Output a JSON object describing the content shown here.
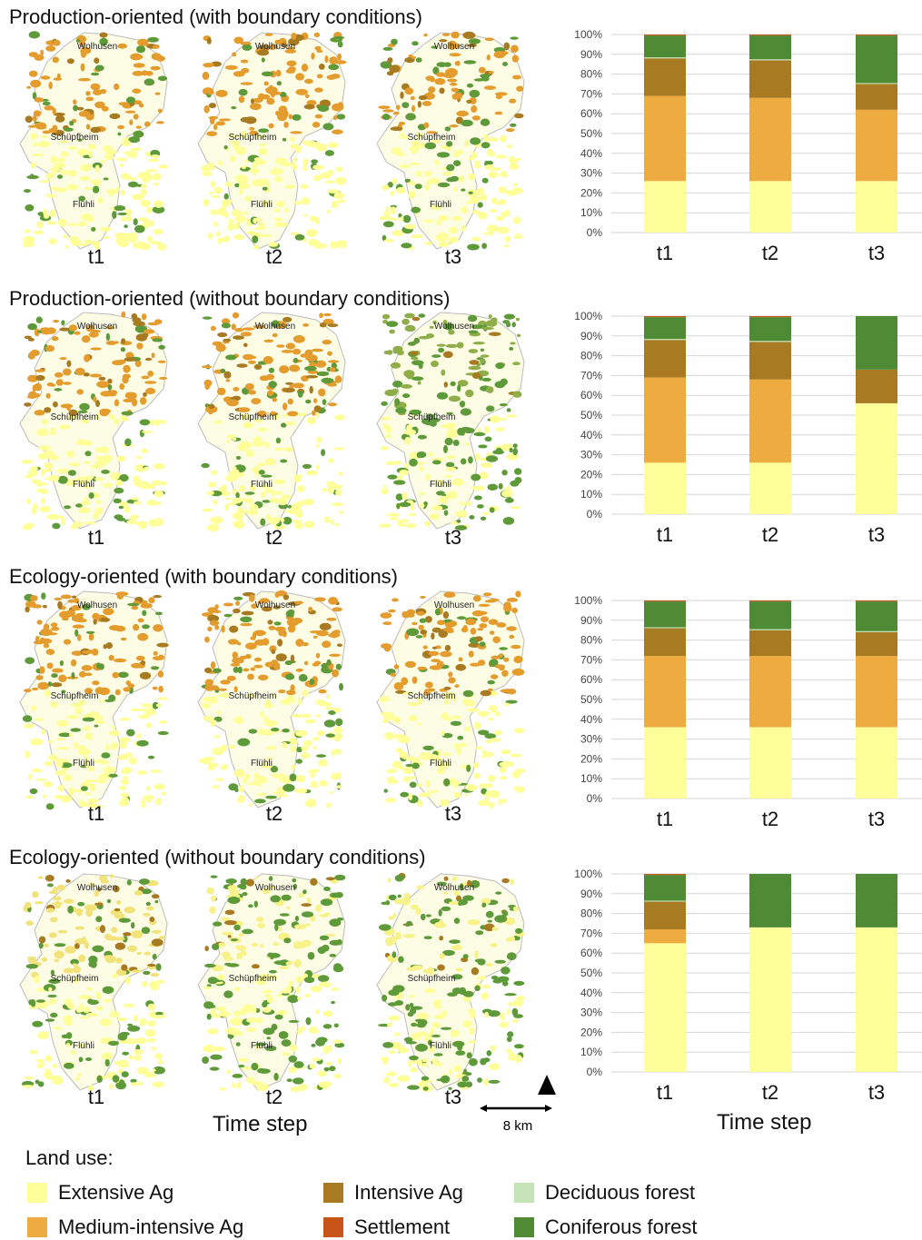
{
  "panels": [
    {
      "title": "Production-oriented (with boundary conditions)"
    },
    {
      "title": "Production-oriented (without boundary conditions)"
    },
    {
      "title": "Ecology-oriented (with boundary conditions)"
    },
    {
      "title": "Ecology-oriented (without boundary conditions)"
    }
  ],
  "map_labels": {
    "north": "Wolhusen",
    "middle": "Schüpfheim",
    "south": "Flühli"
  },
  "time_labels": [
    "t1",
    "t2",
    "t3"
  ],
  "x_axis_title": "Time step",
  "scale_bar": {
    "label": "8 km",
    "north": "N"
  },
  "legend": {
    "title": "Land use:",
    "items": [
      {
        "label": "Extensive Ag",
        "color": "#ffff99"
      },
      {
        "label": "Medium-intensive Ag",
        "color": "#eeab3f"
      },
      {
        "label": "Intensive Ag",
        "color": "#a87a22"
      },
      {
        "label": "Settlement",
        "color": "#c8541a"
      },
      {
        "label": "Deciduous forest",
        "color": "#c4e3b6"
      },
      {
        "label": "Coniferous forest",
        "color": "#4f8a34"
      }
    ]
  },
  "chart_data": [
    {
      "type": "bar",
      "stacked": true,
      "categories": [
        "t1",
        "t2",
        "t3"
      ],
      "ylim": [
        0,
        100
      ],
      "yticks": [
        "0%",
        "10%",
        "20%",
        "30%",
        "40%",
        "50%",
        "60%",
        "70%",
        "80%",
        "90%",
        "100%"
      ],
      "xlabel": "",
      "series": [
        {
          "name": "Extensive Ag",
          "values": [
            26,
            26,
            26
          ]
        },
        {
          "name": "Medium-intensive Ag",
          "values": [
            43,
            42,
            36
          ]
        },
        {
          "name": "Intensive Ag",
          "values": [
            19,
            19,
            13
          ]
        },
        {
          "name": "Deciduous forest",
          "values": [
            0.5,
            0.5,
            0.5
          ]
        },
        {
          "name": "Coniferous forest",
          "values": [
            11,
            12,
            24
          ]
        },
        {
          "name": "Settlement",
          "values": [
            0.5,
            0.5,
            0.5
          ]
        }
      ]
    },
    {
      "type": "bar",
      "stacked": true,
      "categories": [
        "t1",
        "t2",
        "t3"
      ],
      "ylim": [
        0,
        100
      ],
      "yticks": [
        "0%",
        "10%",
        "20%",
        "30%",
        "40%",
        "50%",
        "60%",
        "70%",
        "80%",
        "90%",
        "100%"
      ],
      "xlabel": "",
      "series": [
        {
          "name": "Extensive Ag",
          "values": [
            26,
            26,
            56
          ]
        },
        {
          "name": "Medium-intensive Ag",
          "values": [
            43,
            42,
            0
          ]
        },
        {
          "name": "Intensive Ag",
          "values": [
            19,
            19,
            17
          ]
        },
        {
          "name": "Deciduous forest",
          "values": [
            0.5,
            0.5,
            0
          ]
        },
        {
          "name": "Coniferous forest",
          "values": [
            11,
            12,
            27
          ]
        },
        {
          "name": "Settlement",
          "values": [
            0.5,
            0.5,
            0
          ]
        }
      ]
    },
    {
      "type": "bar",
      "stacked": true,
      "categories": [
        "t1",
        "t2",
        "t3"
      ],
      "ylim": [
        0,
        100
      ],
      "yticks": [
        "0%",
        "10%",
        "20%",
        "30%",
        "40%",
        "50%",
        "60%",
        "70%",
        "80%",
        "90%",
        "100%"
      ],
      "xlabel": "",
      "series": [
        {
          "name": "Extensive Ag",
          "values": [
            36,
            36,
            36
          ]
        },
        {
          "name": "Medium-intensive Ag",
          "values": [
            36,
            36,
            36
          ]
        },
        {
          "name": "Intensive Ag",
          "values": [
            14,
            13,
            12
          ]
        },
        {
          "name": "Deciduous forest",
          "values": [
            0.5,
            0.5,
            0.5
          ]
        },
        {
          "name": "Coniferous forest",
          "values": [
            13,
            14,
            15
          ]
        },
        {
          "name": "Settlement",
          "values": [
            0.5,
            0.5,
            0.5
          ]
        }
      ]
    },
    {
      "type": "bar",
      "stacked": true,
      "categories": [
        "t1",
        "t2",
        "t3"
      ],
      "ylim": [
        0,
        100
      ],
      "yticks": [
        "0%",
        "10%",
        "20%",
        "30%",
        "40%",
        "50%",
        "60%",
        "70%",
        "80%",
        "90%",
        "100%"
      ],
      "xlabel": "Time step",
      "series": [
        {
          "name": "Extensive Ag",
          "values": [
            65,
            73,
            73
          ]
        },
        {
          "name": "Medium-intensive Ag",
          "values": [
            7,
            0,
            0
          ]
        },
        {
          "name": "Intensive Ag",
          "values": [
            14,
            0,
            0
          ]
        },
        {
          "name": "Deciduous forest",
          "values": [
            0.5,
            0,
            0
          ]
        },
        {
          "name": "Coniferous forest",
          "values": [
            13,
            27,
            27
          ]
        },
        {
          "name": "Settlement",
          "values": [
            0.5,
            0,
            0
          ]
        }
      ]
    }
  ]
}
